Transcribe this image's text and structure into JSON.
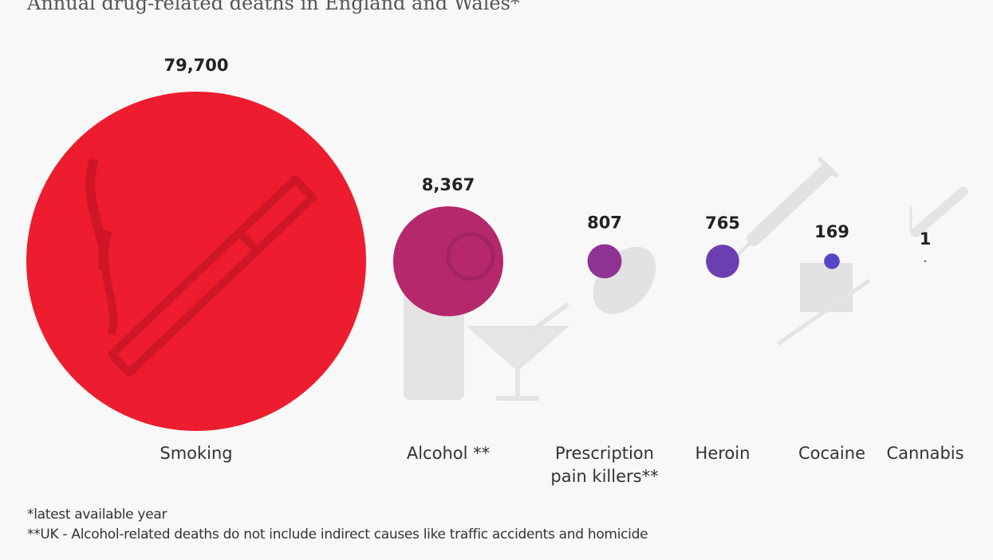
{
  "chart_data": {
    "type": "bubble",
    "title": "Annual drug-related deaths in England and Wales*",
    "categories": [
      "Smoking",
      "Alcohol **",
      "Prescription pain killers**",
      "Heroin",
      "Cocaine",
      "Cannabis"
    ],
    "category_lines": [
      [
        "Smoking"
      ],
      [
        "Alcohol **"
      ],
      [
        "Prescription",
        "pain killers**"
      ],
      [
        "Heroin"
      ],
      [
        "Cocaine"
      ],
      [
        "Cannabis"
      ]
    ],
    "values": [
      79700,
      8367,
      807,
      765,
      169,
      1
    ],
    "value_labels": [
      "79,700",
      "8,367",
      "807",
      "765",
      "169",
      "1"
    ],
    "colors": [
      "#ed1c2e",
      "#b5286c",
      "#8e3394",
      "#6c3fb0",
      "#5545c8",
      "#4a4ad0"
    ],
    "grid": false,
    "legend": "none"
  },
  "footnotes": [
    "*latest available year",
    "**UK - Alcohol-related deaths do not include indirect causes like traffic accidents and homicide"
  ],
  "background_icons": [
    "cigarette-icon",
    "glass-icon",
    "lime-icon",
    "martini-icon",
    "pill-icon",
    "syringe-icon",
    "razor-blade-icon",
    "joint-icon"
  ]
}
